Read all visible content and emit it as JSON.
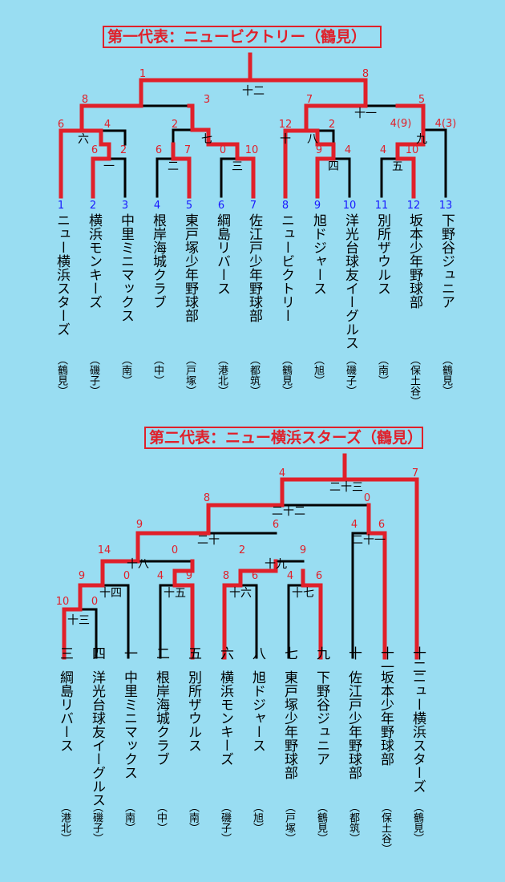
{
  "brackets": [
    {
      "title": "第一代表：ニュービクトリー（鶴見）",
      "teams": [
        {
          "seed": "1",
          "name": "ニュー横浜スターズ",
          "area": "（鶴見）"
        },
        {
          "seed": "2",
          "name": "横浜モンキーズ",
          "area": "（磯子）"
        },
        {
          "seed": "3",
          "name": "中里ミニマックス",
          "area": "（南）"
        },
        {
          "seed": "4",
          "name": "根岸海城クラブ",
          "area": "（中）"
        },
        {
          "seed": "5",
          "name": "東戸塚少年野球部",
          "area": "（戸塚）"
        },
        {
          "seed": "6",
          "name": "綱島リバース",
          "area": "（港北）"
        },
        {
          "seed": "7",
          "name": "佐江戸少年野球部",
          "area": "（都筑）"
        },
        {
          "seed": "8",
          "name": "ニュービクトリー",
          "area": "（鶴見）"
        },
        {
          "seed": "9",
          "name": "旭ドジャース",
          "area": "（旭）"
        },
        {
          "seed": "10",
          "name": "洋光台球友イーグルス",
          "area": "（磯子）"
        },
        {
          "seed": "11",
          "name": "別所ザウルス",
          "area": "（南）"
        },
        {
          "seed": "12",
          "name": "坂本少年野球部",
          "area": "（保土谷）"
        },
        {
          "seed": "13",
          "name": "下野谷ジュニア",
          "area": "（鶴見）"
        }
      ],
      "games": [
        "一",
        "二",
        "三",
        "四",
        "五",
        "六",
        "七",
        "八",
        "九",
        "十",
        "十一",
        "十二"
      ],
      "scores": [
        "6",
        "4",
        "6",
        "2",
        "2",
        "7",
        "0",
        "10",
        "12",
        "2",
        "9",
        "4",
        "4",
        "10",
        "4(9)",
        "4(3)",
        "8",
        "3",
        "7",
        "5",
        "1",
        "8"
      ]
    },
    {
      "title": "第二代表：ニュー横浜スターズ（鶴見）",
      "teams": [
        {
          "seed": "三",
          "name": "綱島リバース",
          "area": "（港北）"
        },
        {
          "seed": "四",
          "name": "洋光台球友イーグルス",
          "area": "（磯子）"
        },
        {
          "seed": "一",
          "name": "中里ミニマックス",
          "area": "（南）"
        },
        {
          "seed": "二",
          "name": "根岸海城クラブ",
          "area": "（中）"
        },
        {
          "seed": "五",
          "name": "別所ザウルス",
          "area": "（南）"
        },
        {
          "seed": "六",
          "name": "横浜モンキーズ",
          "area": "（磯子）"
        },
        {
          "seed": "八",
          "name": "旭ドジャース",
          "area": "（旭）"
        },
        {
          "seed": "七",
          "name": "東戸塚少年野球部",
          "area": "（戸塚）"
        },
        {
          "seed": "九",
          "name": "下野谷ジュニア",
          "area": "（鶴見）"
        },
        {
          "seed": "十",
          "name": "佐江戸少年野球部",
          "area": "（都筑）"
        },
        {
          "seed": "十一",
          "name": "坂本少年野球部",
          "area": "（保土谷）"
        },
        {
          "seed": "十二",
          "name": "ニュー横浜スターズ",
          "area": "（鶴見）"
        }
      ],
      "games": [
        "十三",
        "十四",
        "十五",
        "十六",
        "十七",
        "十八",
        "十九",
        "二十",
        "二十一",
        "二十二",
        "二十三"
      ],
      "scores": [
        "10",
        "0",
        "9",
        "0",
        "14",
        "0",
        "4",
        "9",
        "8",
        "6",
        "4",
        "6",
        "2",
        "9",
        "9",
        "6",
        "4",
        "6",
        "8",
        "0",
        "4",
        "7"
      ]
    }
  ],
  "colors": {
    "background": "#99ddf2",
    "winner_line": "#e0202a",
    "line": "#000000",
    "seed_blue": "#1a1aff"
  }
}
